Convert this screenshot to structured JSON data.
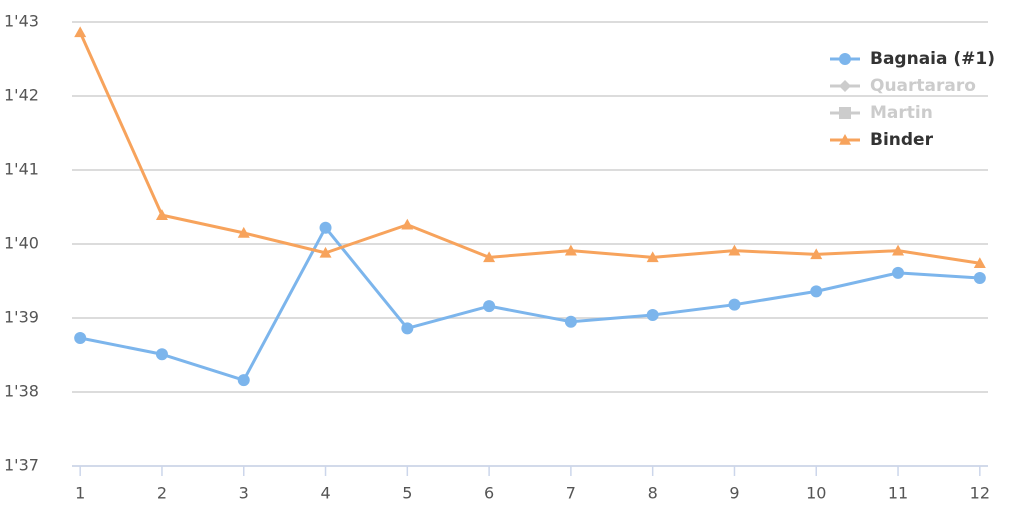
{
  "chart_data": {
    "type": "line",
    "x": [
      1,
      2,
      3,
      4,
      5,
      6,
      7,
      8,
      9,
      10,
      11,
      12
    ],
    "xlim": [
      0.9,
      12.1
    ],
    "xticks": [
      1,
      2,
      3,
      4,
      5,
      6,
      7,
      8,
      9,
      10,
      11,
      12
    ],
    "ylim": [
      97,
      103
    ],
    "yticks": [
      {
        "value": 97,
        "label": "1'37"
      },
      {
        "value": 98,
        "label": "1'38"
      },
      {
        "value": 99,
        "label": "1'39"
      },
      {
        "value": 100,
        "label": "1'40"
      },
      {
        "value": 101,
        "label": "1'41"
      },
      {
        "value": 102,
        "label": "1'42"
      },
      {
        "value": 103,
        "label": "1'43"
      }
    ],
    "grid": true,
    "legend": "top-right",
    "series": [
      {
        "name": "Bagnaia (#1)",
        "color": "#7cb5ec",
        "marker": "circle",
        "visible": true,
        "values": [
          98.73,
          98.51,
          98.16,
          100.22,
          98.86,
          99.16,
          98.95,
          99.04,
          99.18,
          99.36,
          99.61,
          99.54
        ]
      },
      {
        "name": "Quartararo",
        "color": "#cccccc",
        "marker": "diamond",
        "visible": false,
        "values": [
          null,
          null,
          null,
          null,
          null,
          null,
          null,
          null,
          null,
          null,
          null,
          null
        ]
      },
      {
        "name": "Martin",
        "color": "#cccccc",
        "marker": "square",
        "visible": false,
        "values": [
          null,
          null,
          null,
          null,
          null,
          null,
          null,
          null,
          null,
          null,
          null,
          null
        ]
      },
      {
        "name": "Binder",
        "color": "#f7a35c",
        "marker": "triangle",
        "visible": true,
        "values": [
          102.86,
          100.39,
          100.15,
          99.88,
          100.26,
          99.82,
          99.91,
          99.82,
          99.91,
          99.86,
          99.91,
          99.74
        ]
      }
    ]
  }
}
